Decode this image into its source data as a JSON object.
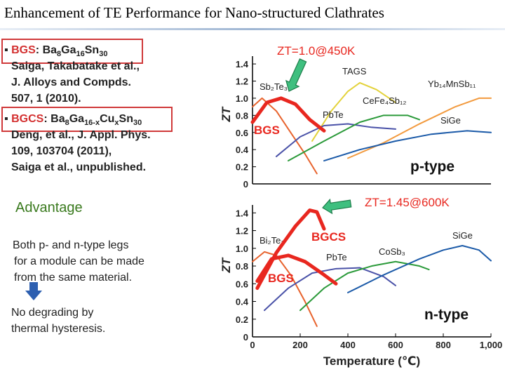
{
  "slide": {
    "title": "Enhancement of TE Performance for Nano-structured Clathrates",
    "refs": [
      {
        "bullet": "▪",
        "label": "BGS",
        "formula_parts": [
          "Ba",
          "8",
          "Ga",
          "16",
          "Sn",
          "30"
        ],
        "lines": [
          "Saiga, Takabatake et al.,",
          "J. Alloys and Compds.",
          "507, 1 (2010)."
        ]
      },
      {
        "bullet": "▪",
        "label": "BGCS",
        "formula_parts": [
          "Ba",
          "8",
          "Ga",
          "16-x",
          "Cu",
          "x",
          "Sn",
          "30"
        ],
        "lines": [
          "Deng, et al., J. Appl. Phys.",
          "109, 103704 (2011),",
          "Saiga et al., unpublished."
        ]
      }
    ],
    "advantage": "Advantage",
    "para1": [
      "Both p- and n-type legs",
      "for a module can be made",
      "from the same material."
    ],
    "para2": [
      "No degrading by",
      "thermal hysteresis."
    ]
  },
  "chart_data": [
    {
      "type": "line",
      "panel_label": "p-type",
      "ylabel": "ZT",
      "yticks": [
        "0",
        "0.2",
        "0.4",
        "0.6",
        "0.8",
        "1.0",
        "1.2",
        "1.4"
      ],
      "ylim": [
        0,
        1.45
      ],
      "xlim": [
        0,
        1000
      ],
      "callout": "ZT=1.0@450K",
      "highlight_color": "#e8271f",
      "series": [
        {
          "name": "Sb₂Te₃",
          "color": "#e8632d",
          "x": [
            0,
            40,
            100,
            160,
            220,
            270
          ],
          "y": [
            0.9,
            1.0,
            0.85,
            0.6,
            0.35,
            0.12
          ]
        },
        {
          "name": "TAGS",
          "color": "#e3d23a",
          "x": [
            250,
            330,
            400,
            450,
            520,
            600
          ],
          "y": [
            0.5,
            0.85,
            1.08,
            1.18,
            1.1,
            0.95
          ]
        },
        {
          "name": "PbTe",
          "color": "#4a52a8",
          "x": [
            100,
            200,
            300,
            400,
            500,
            600
          ],
          "y": [
            0.32,
            0.55,
            0.68,
            0.7,
            0.66,
            0.64
          ]
        },
        {
          "name": "CeFe₄Sb₁₂",
          "color": "#2b9a3a",
          "x": [
            150,
            300,
            450,
            550,
            650,
            700
          ],
          "y": [
            0.27,
            0.5,
            0.72,
            0.8,
            0.8,
            0.75
          ]
        },
        {
          "name": "Yb₁₄MnSb₁₁",
          "color": "#f29a3e",
          "x": [
            400,
            550,
            700,
            850,
            950,
            1000
          ],
          "y": [
            0.3,
            0.48,
            0.7,
            0.9,
            1.0,
            1.0
          ]
        },
        {
          "name": "SiGe",
          "color": "#1b5aa8",
          "x": [
            300,
            450,
            600,
            750,
            900,
            1000
          ],
          "y": [
            0.27,
            0.4,
            0.5,
            0.58,
            0.62,
            0.6
          ]
        },
        {
          "name": "BGS",
          "color": "#e8271f",
          "x": [
            0,
            60,
            120,
            180,
            240,
            300
          ],
          "y": [
            0.72,
            0.95,
            1.0,
            0.93,
            0.75,
            0.62
          ]
        }
      ]
    },
    {
      "type": "line",
      "panel_label": "n-type",
      "xlabel": "Temperature (℃)",
      "ylabel": "ZT",
      "xticks": [
        "0",
        "200",
        "400",
        "600",
        "800",
        "1,000"
      ],
      "yticks": [
        "0",
        "0.2",
        "0.4",
        "0.6",
        "0.8",
        "1.0",
        "1.2",
        "1.4"
      ],
      "ylim": [
        0,
        1.45
      ],
      "xlim": [
        0,
        1000
      ],
      "callout": "ZT=1.45@600K",
      "highlight_color": "#e8271f",
      "series": [
        {
          "name": "Bi₂Te₃",
          "color": "#e8632d",
          "x": [
            0,
            50,
            100,
            160,
            220,
            270
          ],
          "y": [
            0.85,
            0.96,
            0.92,
            0.7,
            0.4,
            0.12
          ]
        },
        {
          "name": "PbTe",
          "color": "#4a52a8",
          "x": [
            50,
            150,
            250,
            350,
            450,
            550,
            600
          ],
          "y": [
            0.3,
            0.55,
            0.72,
            0.77,
            0.78,
            0.68,
            0.58
          ]
        },
        {
          "name": "CoSb₃",
          "color": "#2b9a3a",
          "x": [
            200,
            300,
            400,
            500,
            600,
            700,
            740
          ],
          "y": [
            0.3,
            0.55,
            0.72,
            0.8,
            0.85,
            0.8,
            0.76
          ]
        },
        {
          "name": "SiGe",
          "color": "#1b5aa8",
          "x": [
            400,
            550,
            700,
            800,
            880,
            950,
            1000
          ],
          "y": [
            0.5,
            0.7,
            0.88,
            0.98,
            1.03,
            0.98,
            0.86
          ]
        },
        {
          "name": "BGS",
          "color": "#e8271f",
          "x": [
            20,
            80,
            150,
            220,
            290,
            350
          ],
          "y": [
            0.63,
            0.88,
            0.92,
            0.85,
            0.72,
            0.6
          ]
        },
        {
          "name": "BGCS",
          "color": "#e8271f",
          "x": [
            20,
            100,
            180,
            240,
            270,
            300
          ],
          "y": [
            0.55,
            0.95,
            1.25,
            1.43,
            1.41,
            1.22
          ]
        }
      ]
    }
  ]
}
